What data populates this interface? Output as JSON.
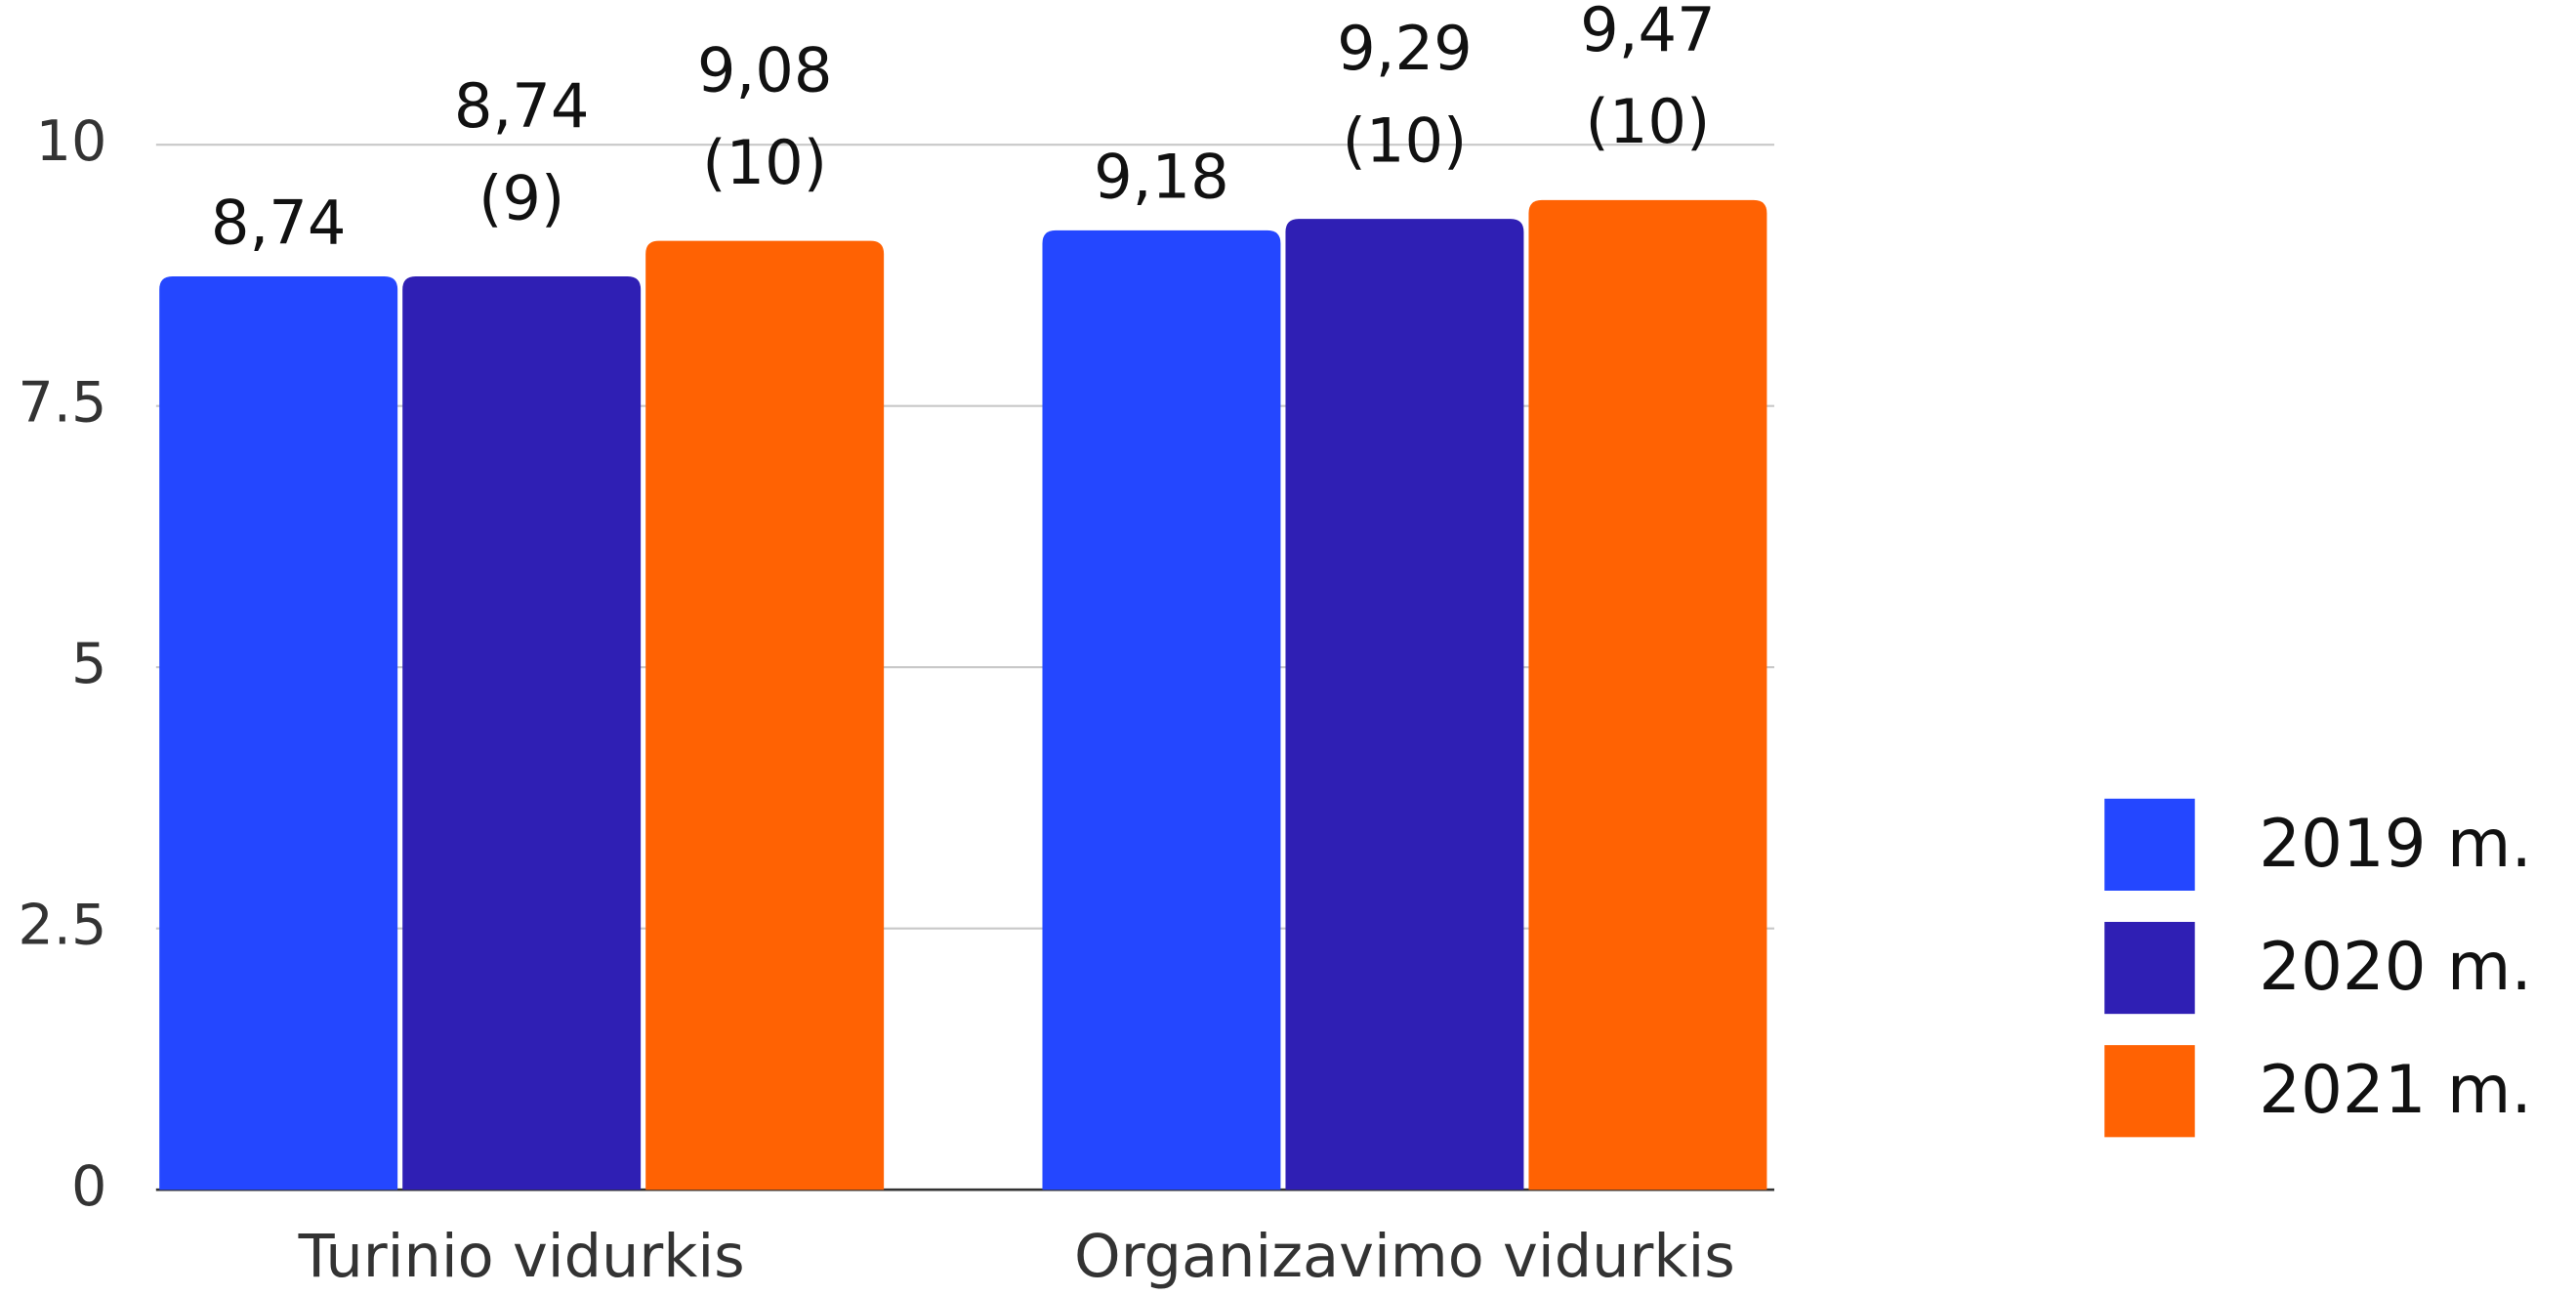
{
  "chart_data": {
    "type": "bar",
    "categories": [
      "Turinio vidurkis",
      "Organizavimo vidurkis"
    ],
    "series": [
      {
        "name": "2019 m.",
        "color": "#2447ff",
        "values": [
          8.74,
          9.18
        ],
        "value_labels": [
          "8,74",
          "9,18"
        ]
      },
      {
        "name": "2020 m.",
        "color": "#2f1fb4",
        "values": [
          8.74,
          9.29
        ],
        "value_labels": [
          "8,74 (9)",
          "9,29 (10)"
        ]
      },
      {
        "name": "2021 m.",
        "color": "#ff6203",
        "values": [
          9.08,
          9.47
        ],
        "value_labels": [
          "9,08 (10)",
          "9,47 (10)"
        ]
      }
    ],
    "ylim": [
      0,
      10
    ],
    "yticks": [
      0,
      2.5,
      5,
      7.5,
      10
    ],
    "grid": true,
    "legend": "right"
  }
}
